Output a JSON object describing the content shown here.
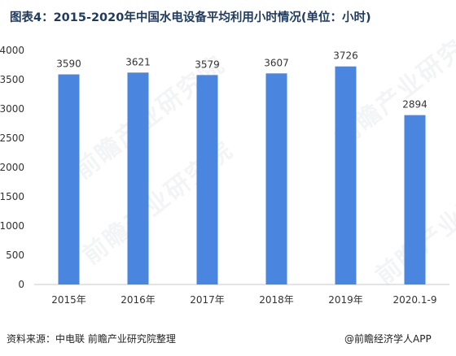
{
  "title": "图表4：2015-2020年中国水电设备平均利用小时情况(单位：小时)",
  "source": "资料来源：中电联 前瞻产业研究院整理",
  "brand": "@前瞻经济学人APP",
  "watermark": "前瞻产业研究院",
  "colors": {
    "bar": "#4a86e0",
    "axis": "#c8c8c8",
    "text": "#333333"
  },
  "chart_data": {
    "type": "bar",
    "categories": [
      "2015年",
      "2016年",
      "2017年",
      "2018年",
      "2019年",
      "2020.1-9"
    ],
    "values": [
      3590,
      3621,
      3579,
      3607,
      3726,
      2894
    ],
    "data_labels": [
      "3590",
      "3621",
      "3579",
      "3607",
      "3726",
      "2894"
    ],
    "yticks": [
      "0",
      "500",
      "1000",
      "1500",
      "2000",
      "2500",
      "3000",
      "3500",
      "4000"
    ],
    "ylim": [
      0,
      4000
    ],
    "grid": false,
    "legend": "none"
  }
}
